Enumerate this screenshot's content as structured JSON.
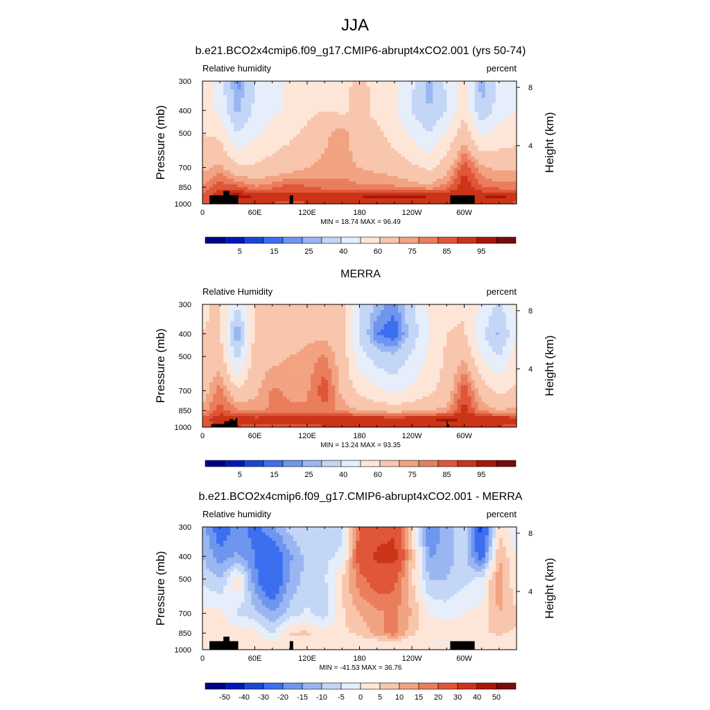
{
  "page_title": "JJA",
  "colors": {
    "absolute": [
      "#00008b",
      "#0018b8",
      "#1a46d6",
      "#3c6ef0",
      "#6f96ee",
      "#9ab6f2",
      "#c4d6f6",
      "#e6eefb",
      "#fde6d8",
      "#f8c6ac",
      "#f2a382",
      "#ea7e5c",
      "#e05638",
      "#cc3418",
      "#a8180a",
      "#7a0a06"
    ],
    "difference": [
      "#00008b",
      "#0018b8",
      "#1a46d6",
      "#3c6ef0",
      "#6f96ee",
      "#9ab6f2",
      "#c4d6f6",
      "#e6eefb",
      "#fde6d8",
      "#f8c6ac",
      "#f2a382",
      "#ea7e5c",
      "#e05638",
      "#cc3418",
      "#a8180a",
      "#7a0a06"
    ],
    "terrain": "#000000"
  },
  "chart_data": [
    {
      "type": "heatmap",
      "title": "b.e21.BCO2x4cmip6.f09_g17.CMIP6-abrupt4xCO2.001 (yrs 50-74)",
      "left_label": "Relative humidity",
      "right_label": "percent",
      "ylabel": "Pressure (mb)",
      "ylabel_right": "Height (km)",
      "x_ticks": [
        "0",
        "60E",
        "120E",
        "180",
        "120W",
        "60W"
      ],
      "x_tick_values": [
        0,
        60,
        120,
        180,
        240,
        300
      ],
      "xlim": [
        0,
        360
      ],
      "y_ticks": [
        "300",
        "400",
        "500",
        "700",
        "850",
        "1000"
      ],
      "y_tick_values": [
        300,
        400,
        500,
        700,
        850,
        1000
      ],
      "ylim": [
        1000,
        300
      ],
      "height_ticks": [
        "8",
        "4"
      ],
      "height_tick_values": [
        8,
        4
      ],
      "stats_text": "MIN =  18.74  MAX =  96.49",
      "colorbar_labels": [
        "5",
        "15",
        "25",
        "40",
        "60",
        "75",
        "85",
        "95"
      ],
      "colorbar_levels": [
        0,
        5,
        10,
        15,
        20,
        25,
        30,
        40,
        50,
        60,
        70,
        75,
        80,
        85,
        90,
        95,
        100
      ],
      "field": {
        "lons": [
          0,
          20,
          40,
          60,
          80,
          100,
          120,
          140,
          160,
          180,
          200,
          220,
          240,
          260,
          280,
          300,
          320,
          340,
          360
        ],
        "levels": [
          300,
          400,
          500,
          700,
          850,
          925,
          1000
        ],
        "rh": [
          [
            55,
            45,
            22,
            40,
            45,
            52,
            58,
            56,
            58,
            62,
            58,
            52,
            42,
            25,
            42,
            55,
            25,
            42,
            50
          ],
          [
            55,
            48,
            28,
            42,
            48,
            52,
            58,
            60,
            58,
            62,
            58,
            52,
            40,
            30,
            40,
            58,
            32,
            45,
            50
          ],
          [
            60,
            58,
            40,
            48,
            55,
            58,
            62,
            68,
            74,
            64,
            62,
            56,
            48,
            40,
            52,
            66,
            48,
            54,
            56
          ],
          [
            68,
            72,
            62,
            62,
            64,
            66,
            70,
            72,
            72,
            70,
            68,
            66,
            62,
            58,
            66,
            84,
            72,
            68,
            68
          ],
          [
            76,
            84,
            82,
            76,
            78,
            84,
            80,
            78,
            78,
            76,
            76,
            76,
            74,
            72,
            78,
            90,
            80,
            78,
            78
          ],
          [
            82,
            90,
            93,
            90,
            90,
            86,
            90,
            90,
            90,
            90,
            92,
            93,
            93,
            90,
            90,
            90,
            90,
            93,
            88
          ],
          [
            82,
            85,
            86,
            84,
            84,
            84,
            84,
            84,
            86,
            86,
            86,
            86,
            86,
            86,
            86,
            84,
            84,
            86,
            84
          ]
        ]
      },
      "terrain": [
        {
          "lon0": 8,
          "lon1": 32,
          "p_top": 920
        },
        {
          "lon0": 24,
          "lon1": 31,
          "p_top": 880
        },
        {
          "lon0": 31,
          "lon1": 41,
          "p_top": 920
        },
        {
          "lon0": 100,
          "lon1": 104,
          "p_top": 920
        },
        {
          "lon0": 284,
          "lon1": 312,
          "p_top": 920
        }
      ]
    },
    {
      "type": "heatmap",
      "title": "MERRA",
      "left_label": "Relative Humidity",
      "right_label": "percent",
      "ylabel": "Pressure (mb)",
      "ylabel_right": "Height (km)",
      "x_ticks": [
        "0",
        "60E",
        "120E",
        "180",
        "120W",
        "60W"
      ],
      "x_tick_values": [
        0,
        60,
        120,
        180,
        240,
        300
      ],
      "xlim": [
        0,
        360
      ],
      "y_ticks": [
        "300",
        "400",
        "500",
        "700",
        "850",
        "1000"
      ],
      "y_tick_values": [
        300,
        400,
        500,
        700,
        850,
        1000
      ],
      "ylim": [
        1000,
        300
      ],
      "height_ticks": [
        "8",
        "4"
      ],
      "height_tick_values": [
        8,
        4
      ],
      "stats_text": "MIN =  13.24  MAX =  93.35",
      "colorbar_labels": [
        "5",
        "15",
        "25",
        "40",
        "60",
        "75",
        "85",
        "95"
      ],
      "colorbar_levels": [
        0,
        5,
        10,
        15,
        20,
        25,
        30,
        40,
        50,
        60,
        70,
        75,
        80,
        85,
        90,
        95,
        100
      ],
      "field": {
        "lons": [
          0,
          20,
          40,
          60,
          80,
          100,
          120,
          140,
          160,
          180,
          200,
          220,
          240,
          260,
          280,
          300,
          320,
          340,
          360
        ],
        "levels": [
          300,
          400,
          500,
          700,
          850,
          925,
          1000
        ],
        "rh": [
          [
            58,
            62,
            40,
            62,
            62,
            66,
            66,
            66,
            64,
            40,
            28,
            22,
            38,
            52,
            56,
            58,
            48,
            38,
            52
          ],
          [
            60,
            62,
            22,
            62,
            66,
            66,
            68,
            68,
            64,
            38,
            20,
            15,
            34,
            50,
            60,
            62,
            42,
            28,
            50
          ],
          [
            62,
            66,
            36,
            66,
            68,
            70,
            72,
            76,
            66,
            45,
            35,
            32,
            42,
            52,
            62,
            70,
            50,
            40,
            56
          ],
          [
            66,
            78,
            62,
            68,
            76,
            74,
            74,
            84,
            68,
            58,
            52,
            48,
            52,
            58,
            64,
            84,
            66,
            58,
            62
          ],
          [
            72,
            82,
            76,
            74,
            76,
            76,
            76,
            78,
            74,
            70,
            68,
            66,
            68,
            70,
            72,
            88,
            74,
            70,
            72
          ],
          [
            82,
            90,
            90,
            88,
            88,
            88,
            88,
            90,
            90,
            90,
            90,
            90,
            90,
            90,
            92,
            90,
            90,
            90,
            88
          ],
          [
            80,
            84,
            84,
            84,
            84,
            84,
            84,
            84,
            84,
            84,
            84,
            84,
            84,
            84,
            84,
            84,
            84,
            84,
            84
          ]
        ]
      },
      "terrain": [
        {
          "lon0": 10,
          "lon1": 25,
          "p_top": 970
        },
        {
          "lon0": 25,
          "lon1": 31,
          "p_top": 945
        },
        {
          "lon0": 31,
          "lon1": 35,
          "p_top": 925
        },
        {
          "lon0": 35,
          "lon1": 38,
          "p_top": 935
        },
        {
          "lon0": 38,
          "lon1": 40,
          "p_top": 915
        },
        {
          "lon0": 280,
          "lon1": 281,
          "p_top": 940
        },
        {
          "lon0": 281,
          "lon1": 283,
          "p_top": 975
        }
      ]
    },
    {
      "type": "heatmap",
      "title": "b.e21.BCO2x4cmip6.f09_g17.CMIP6-abrupt4xCO2.001 - MERRA",
      "left_label": "Relative humidity",
      "right_label": "percent",
      "ylabel": "Pressure (mb)",
      "ylabel_right": "Height (km)",
      "x_ticks": [
        "0",
        "60E",
        "120E",
        "180",
        "120W",
        "60W"
      ],
      "x_tick_values": [
        0,
        60,
        120,
        180,
        240,
        300
      ],
      "xlim": [
        0,
        360
      ],
      "y_ticks": [
        "300",
        "400",
        "500",
        "700",
        "850",
        "1000"
      ],
      "y_tick_values": [
        300,
        400,
        500,
        700,
        850,
        1000
      ],
      "ylim": [
        1000,
        300
      ],
      "height_ticks": [
        "8",
        "4"
      ],
      "height_tick_values": [
        8,
        4
      ],
      "stats_text": "MIN = -41.53  MAX =  36.76",
      "colorbar_labels": [
        "-50",
        "-40",
        "-30",
        "-20",
        "-15",
        "-10",
        "-5",
        "0",
        "5",
        "10",
        "15",
        "20",
        "30",
        "40",
        "50"
      ],
      "colorbar_levels": [
        -60,
        -50,
        -40,
        -30,
        -20,
        -15,
        -10,
        -5,
        0,
        5,
        10,
        15,
        20,
        30,
        40,
        50,
        60
      ],
      "field": {
        "lons": [
          0,
          20,
          40,
          60,
          80,
          100,
          120,
          140,
          160,
          180,
          200,
          220,
          240,
          260,
          280,
          300,
          320,
          340,
          360
        ],
        "levels": [
          300,
          400,
          500,
          700,
          850,
          925,
          1000
        ],
        "rh": [
          [
            -12,
            -25,
            -18,
            -22,
            -16,
            -8,
            -6,
            -8,
            -6,
            22,
            26,
            28,
            6,
            -20,
            -12,
            -6,
            -34,
            4,
            -4
          ],
          [
            -10,
            -18,
            -14,
            -20,
            -28,
            -16,
            -8,
            -6,
            -4,
            24,
            32,
            34,
            8,
            -16,
            -12,
            -8,
            -24,
            10,
            0
          ],
          [
            -6,
            -10,
            4,
            -18,
            -30,
            -14,
            -8,
            -6,
            6,
            18,
            24,
            22,
            6,
            -10,
            -10,
            -6,
            -4,
            14,
            0
          ],
          [
            2,
            2,
            -6,
            -8,
            -14,
            -8,
            -4,
            -8,
            4,
            10,
            14,
            16,
            10,
            0,
            -2,
            0,
            2,
            10,
            6
          ],
          [
            4,
            2,
            4,
            2,
            -6,
            6,
            6,
            2,
            4,
            6,
            12,
            18,
            6,
            2,
            4,
            2,
            4,
            6,
            4
          ],
          [
            1,
            2,
            3,
            2,
            1,
            0,
            2,
            1,
            1,
            2,
            3,
            3,
            2,
            0,
            -1,
            0,
            1,
            2,
            1
          ],
          [
            2,
            1,
            2,
            0,
            1,
            0,
            0,
            0,
            2,
            2,
            2,
            2,
            2,
            2,
            2,
            0,
            0,
            2,
            2
          ]
        ]
      },
      "terrain": [
        {
          "lon0": 8,
          "lon1": 32,
          "p_top": 920
        },
        {
          "lon0": 24,
          "lon1": 31,
          "p_top": 880
        },
        {
          "lon0": 31,
          "lon1": 41,
          "p_top": 920
        },
        {
          "lon0": 100,
          "lon1": 104,
          "p_top": 920
        },
        {
          "lon0": 284,
          "lon1": 312,
          "p_top": 920
        }
      ]
    }
  ]
}
